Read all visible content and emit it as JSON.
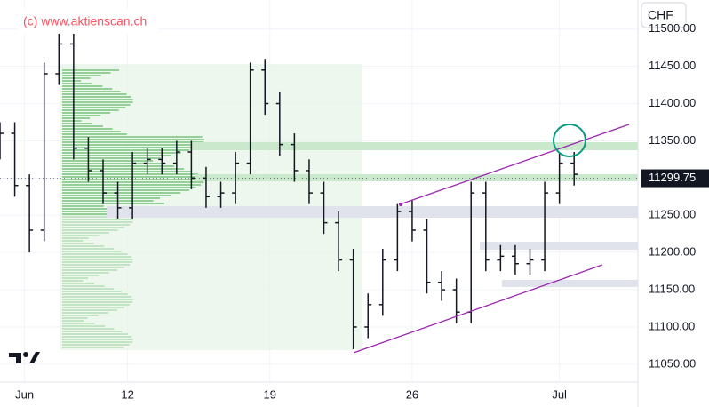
{
  "chart_data": {
    "type": "ohlc",
    "watermark": "(c) www.aktienscan.ch",
    "currency": "CHF",
    "color": "#131722",
    "grid": true,
    "x": [
      0,
      3,
      6,
      9,
      12,
      15,
      18,
      21,
      24,
      27,
      30,
      33,
      36,
      39,
      42,
      45,
      48,
      51,
      54,
      57,
      60,
      63,
      66,
      69,
      72,
      75,
      78,
      81,
      84,
      87,
      90,
      93,
      96,
      99,
      102,
      105,
      108,
      111,
      114,
      117
    ],
    "open": [
      11340,
      11360,
      11290,
      11230,
      11440,
      11480,
      11340,
      11310,
      11280,
      11260,
      11320,
      11325,
      11320,
      11335,
      11300,
      11275,
      11280,
      11320,
      11445,
      11400,
      11345,
      11310,
      11280,
      11240,
      11190,
      11100,
      11130,
      11190,
      11255,
      11230,
      11160,
      11150,
      11120,
      11280,
      11190,
      11195,
      11185,
      11190,
      11280,
      11320
    ],
    "high": [
      11375,
      11375,
      11305,
      11455,
      11495,
      11495,
      11355,
      11325,
      11295,
      11335,
      11340,
      11340,
      11350,
      11350,
      11315,
      11295,
      11335,
      11455,
      11460,
      11415,
      11360,
      11325,
      11295,
      11255,
      11205,
      11145,
      11205,
      11265,
      11270,
      11245,
      11175,
      11165,
      11295,
      11295,
      11210,
      11210,
      11205,
      11295,
      11335,
      11335
    ],
    "low": [
      11325,
      11275,
      11200,
      11215,
      11425,
      11325,
      11295,
      11265,
      11245,
      11245,
      11305,
      11305,
      11305,
      11285,
      11260,
      11260,
      11265,
      11305,
      11385,
      11330,
      11295,
      11265,
      11225,
      11175,
      11070,
      11085,
      11115,
      11175,
      11215,
      11145,
      11135,
      11105,
      11105,
      11175,
      11175,
      11170,
      11170,
      11175,
      11265,
      11290
    ],
    "close": [
      11360,
      11290,
      11230,
      11440,
      11480,
      11340,
      11310,
      11280,
      11260,
      11320,
      11325,
      11320,
      11335,
      11300,
      11275,
      11280,
      11320,
      11445,
      11400,
      11345,
      11310,
      11280,
      11240,
      11190,
      11100,
      11130,
      11190,
      11255,
      11230,
      11160,
      11150,
      11120,
      11280,
      11190,
      11195,
      11185,
      11190,
      11280,
      11320,
      11305
    ],
    "xlim": [
      0,
      130
    ],
    "xticks": [
      {
        "value": 5,
        "label": "Jun"
      },
      {
        "value": 26,
        "label": "12"
      },
      {
        "value": 55,
        "label": "19"
      },
      {
        "value": 84,
        "label": "26"
      },
      {
        "value": 114,
        "label": "Jul"
      }
    ],
    "ylim": [
      11026,
      11539
    ],
    "yticks": [
      {
        "value": 11050,
        "label": "11050.00"
      },
      {
        "value": 11100,
        "label": "11100.00"
      },
      {
        "value": 11150,
        "label": "11150.00"
      },
      {
        "value": 11200,
        "label": "11200.00"
      },
      {
        "value": 11250,
        "label": "11250.00"
      },
      {
        "value": 11300,
        "label": "11300.00"
      },
      {
        "value": 11350,
        "label": "11350.00"
      },
      {
        "value": 11400,
        "label": "11400.00"
      },
      {
        "value": 11450,
        "label": "11450.00"
      },
      {
        "value": 11500,
        "label": "11500.00"
      }
    ],
    "last_price": 11299.75
  }
}
